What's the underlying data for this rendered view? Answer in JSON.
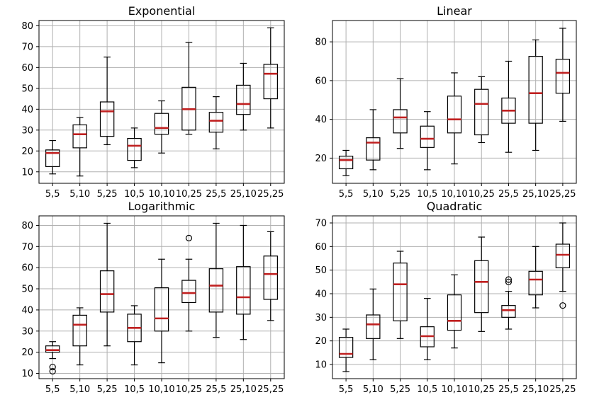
{
  "chart_data": [
    {
      "type": "boxplot",
      "title": "Exponential",
      "categories": [
        "5,5",
        "5,10",
        "5,25",
        "10,5",
        "10,10",
        "10,25",
        "25,5",
        "25,10",
        "25,25"
      ],
      "ylim": [
        4.5,
        82.5
      ],
      "yticks": [
        10,
        20,
        30,
        40,
        50,
        60,
        70,
        80
      ],
      "grid": true,
      "boxes": [
        {
          "min": 9,
          "q1": 12.5,
          "median": 19,
          "q3": 20.5,
          "max": 25,
          "fliers": []
        },
        {
          "min": 8,
          "q1": 21.5,
          "median": 28,
          "q3": 32.5,
          "max": 36,
          "fliers": []
        },
        {
          "min": 23,
          "q1": 27,
          "median": 39,
          "q3": 43.5,
          "max": 65,
          "fliers": []
        },
        {
          "min": 12,
          "q1": 15.5,
          "median": 22.5,
          "q3": 26,
          "max": 31,
          "fliers": []
        },
        {
          "min": 19,
          "q1": 28,
          "median": 31,
          "q3": 38,
          "max": 44,
          "fliers": []
        },
        {
          "min": 28,
          "q1": 30,
          "median": 40,
          "q3": 50.5,
          "max": 72,
          "fliers": []
        },
        {
          "min": 21,
          "q1": 29,
          "median": 34.5,
          "q3": 38.5,
          "max": 46,
          "fliers": []
        },
        {
          "min": 30,
          "q1": 37.5,
          "median": 42.5,
          "q3": 51.5,
          "max": 62,
          "fliers": []
        },
        {
          "min": 31,
          "q1": 45,
          "median": 57,
          "q3": 61.5,
          "max": 79,
          "fliers": []
        }
      ]
    },
    {
      "type": "boxplot",
      "title": "Linear",
      "categories": [
        "5,5",
        "5,10",
        "5,25",
        "10,5",
        "10,10",
        "10,25",
        "25,5",
        "25,10",
        "25,25"
      ],
      "ylim": [
        7,
        91
      ],
      "yticks": [
        20,
        40,
        60,
        80
      ],
      "grid": true,
      "boxes": [
        {
          "min": 11,
          "q1": 14.5,
          "median": 19,
          "q3": 21,
          "max": 24,
          "fliers": []
        },
        {
          "min": 14,
          "q1": 19,
          "median": 28,
          "q3": 30.5,
          "max": 45,
          "fliers": []
        },
        {
          "min": 25,
          "q1": 33,
          "median": 41,
          "q3": 45,
          "max": 61,
          "fliers": []
        },
        {
          "min": 14,
          "q1": 25.5,
          "median": 30,
          "q3": 36.5,
          "max": 44,
          "fliers": []
        },
        {
          "min": 17,
          "q1": 33,
          "median": 40,
          "q3": 52,
          "max": 64,
          "fliers": []
        },
        {
          "min": 28,
          "q1": 32,
          "median": 48,
          "q3": 55.5,
          "max": 62,
          "fliers": []
        },
        {
          "min": 23,
          "q1": 38,
          "median": 44.5,
          "q3": 51,
          "max": 70,
          "fliers": []
        },
        {
          "min": 24,
          "q1": 38,
          "median": 53.5,
          "q3": 72.5,
          "max": 81,
          "fliers": []
        },
        {
          "min": 39,
          "q1": 53.5,
          "median": 64,
          "q3": 71,
          "max": 87,
          "fliers": []
        }
      ]
    },
    {
      "type": "boxplot",
      "title": "Logarithmic",
      "categories": [
        "5,5",
        "5,10",
        "5,25",
        "10,5",
        "10,10",
        "10,25",
        "25,5",
        "25,10",
        "25,25"
      ],
      "ylim": [
        7.5,
        84.5
      ],
      "yticks": [
        10,
        20,
        30,
        40,
        50,
        60,
        70,
        80
      ],
      "grid": true,
      "boxes": [
        {
          "min": 17,
          "q1": 20,
          "median": 21,
          "q3": 23,
          "max": 25,
          "fliers": [
            11,
            13
          ]
        },
        {
          "min": 14,
          "q1": 23,
          "median": 33,
          "q3": 37.5,
          "max": 41,
          "fliers": []
        },
        {
          "min": 23,
          "q1": 39,
          "median": 47.5,
          "q3": 58.5,
          "max": 81,
          "fliers": []
        },
        {
          "min": 14,
          "q1": 25,
          "median": 31.5,
          "q3": 38,
          "max": 42,
          "fliers": []
        },
        {
          "min": 15,
          "q1": 30,
          "median": 36,
          "q3": 50.5,
          "max": 64,
          "fliers": []
        },
        {
          "min": 30,
          "q1": 43.5,
          "median": 48,
          "q3": 54,
          "max": 64,
          "fliers": [
            74
          ]
        },
        {
          "min": 27,
          "q1": 39,
          "median": 51.5,
          "q3": 59.5,
          "max": 81,
          "fliers": []
        },
        {
          "min": 26,
          "q1": 38,
          "median": 46,
          "q3": 60.5,
          "max": 80,
          "fliers": []
        },
        {
          "min": 35,
          "q1": 45,
          "median": 57,
          "q3": 65.5,
          "max": 77,
          "fliers": []
        }
      ]
    },
    {
      "type": "boxplot",
      "title": "Quadratic",
      "categories": [
        "5,5",
        "5,10",
        "5,25",
        "10,5",
        "10,10",
        "10,25",
        "25,5",
        "25,10",
        "25,25"
      ],
      "ylim": [
        4,
        73
      ],
      "yticks": [
        10,
        20,
        30,
        40,
        50,
        60,
        70
      ],
      "grid": true,
      "boxes": [
        {
          "min": 7,
          "q1": 13,
          "median": 14.5,
          "q3": 21.5,
          "max": 25,
          "fliers": []
        },
        {
          "min": 12,
          "q1": 21,
          "median": 27,
          "q3": 31,
          "max": 42,
          "fliers": []
        },
        {
          "min": 21,
          "q1": 28.5,
          "median": 44,
          "q3": 53,
          "max": 58,
          "fliers": []
        },
        {
          "min": 12,
          "q1": 17.5,
          "median": 22,
          "q3": 26,
          "max": 38,
          "fliers": []
        },
        {
          "min": 17,
          "q1": 24.5,
          "median": 28.5,
          "q3": 39.5,
          "max": 48,
          "fliers": []
        },
        {
          "min": 24,
          "q1": 32,
          "median": 45,
          "q3": 54,
          "max": 64,
          "fliers": []
        },
        {
          "min": 25,
          "q1": 30,
          "median": 33,
          "q3": 35,
          "max": 41,
          "fliers": [
            45,
            46
          ]
        },
        {
          "min": 34,
          "q1": 39.5,
          "median": 46,
          "q3": 49.5,
          "max": 60,
          "fliers": []
        },
        {
          "min": 41,
          "q1": 51,
          "median": 56.5,
          "q3": 61,
          "max": 70,
          "fliers": [
            35
          ]
        }
      ]
    }
  ],
  "colors": {
    "median": "#c02020",
    "grid": "#b0b0b0",
    "box": "#000000"
  }
}
